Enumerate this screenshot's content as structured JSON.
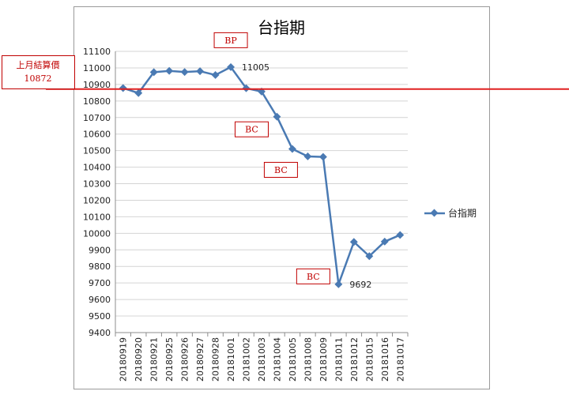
{
  "chart_data": {
    "type": "line",
    "title": "台指期",
    "xlabel": "",
    "ylabel": "",
    "ylim": [
      9400,
      11100
    ],
    "ytick_step": 100,
    "grid": true,
    "legend_position": "right",
    "categories": [
      "20180919",
      "20180920",
      "20180921",
      "20180925",
      "20180926",
      "20180927",
      "20180928",
      "20181001",
      "20181002",
      "20181003",
      "20181004",
      "20181005",
      "20181008",
      "20181009",
      "20181011",
      "20181012",
      "20181015",
      "20181016",
      "20181017"
    ],
    "series": [
      {
        "name": "台指期",
        "color": "#4a7ab3",
        "values": [
          10878,
          10848,
          10974,
          10982,
          10975,
          10980,
          10957,
          11005,
          10877,
          10857,
          10705,
          10510,
          10465,
          10462,
          9692,
          9948,
          9862,
          9950,
          9990
        ]
      }
    ],
    "data_labels": [
      {
        "category": "20181001",
        "text": "11005"
      },
      {
        "category": "20181011",
        "text": "9692"
      }
    ],
    "reference_line": {
      "value": 10872,
      "color": "#e02020",
      "label_lines": [
        "上月結算價",
        "10872"
      ]
    },
    "annotations": [
      {
        "text": "BP",
        "category": "20181001"
      },
      {
        "text": "BC",
        "category": "20181004"
      },
      {
        "text": "BC",
        "category": "20181008"
      },
      {
        "text": "BC",
        "category": "20181011"
      }
    ]
  }
}
